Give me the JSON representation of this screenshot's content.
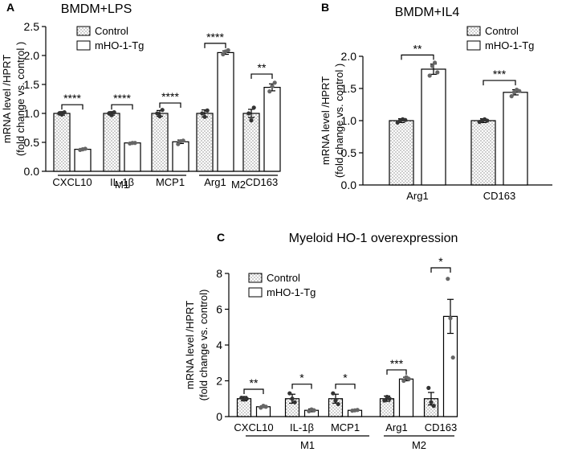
{
  "chart_data": [
    {
      "panel": "A",
      "type": "bar",
      "title": "BMDM+LPS",
      "ylabel": "mRNA level /HPRT",
      "ylabel2": "(fold change vs. control )",
      "ylim": [
        0,
        2.5
      ],
      "yticks": [
        "0.0",
        "0.5",
        "1.0",
        "1.5",
        "2.0",
        "2.5"
      ],
      "categories": [
        "CXCL10",
        "IL-1β",
        "MCP1",
        "Arg1",
        "CD163"
      ],
      "groups": [
        {
          "label": "M1",
          "span": [
            0,
            2
          ]
        },
        {
          "label": "M2",
          "span": [
            3,
            4
          ]
        }
      ],
      "series": [
        {
          "name": "Control",
          "values": [
            1.0,
            1.0,
            1.0,
            1.0,
            1.0
          ],
          "errors": [
            0.03,
            0.03,
            0.05,
            0.06,
            0.07
          ]
        },
        {
          "name": "mHO-1-Tg",
          "values": [
            0.38,
            0.49,
            0.51,
            2.05,
            1.45
          ],
          "errors": [
            0.01,
            0.01,
            0.03,
            0.03,
            0.06
          ]
        }
      ],
      "points": [
        [
          [
            1.0,
            0.98,
            1.02
          ],
          [
            0.37,
            0.38,
            0.39
          ]
        ],
        [
          [
            1.0,
            0.97,
            1.02
          ],
          [
            0.48,
            0.49,
            0.49
          ]
        ],
        [
          [
            1.0,
            0.95,
            1.06
          ],
          [
            0.47,
            0.52,
            0.53
          ]
        ],
        [
          [
            1.0,
            0.94,
            1.05
          ],
          [
            2.02,
            2.07,
            2.09
          ]
        ],
        [
          [
            1.0,
            0.88,
            1.1
          ],
          [
            1.38,
            1.47,
            1.53
          ]
        ]
      ],
      "significance": [
        "****",
        "****",
        "****",
        "****",
        "**"
      ],
      "legend": "top-left"
    },
    {
      "panel": "B",
      "type": "bar",
      "title": "BMDM+IL4",
      "ylabel": "mRNA level /HPRT",
      "ylabel2": "(fold change vs. control )",
      "ylim": [
        0,
        2.0
      ],
      "yticks": [
        "0.0",
        "0.5",
        "1.0",
        "1.5",
        "2.0"
      ],
      "categories": [
        "Arg1",
        "CD163"
      ],
      "series": [
        {
          "name": "Control",
          "values": [
            1.0,
            1.0
          ],
          "errors": [
            0.03,
            0.03
          ]
        },
        {
          "name": "mHO-1-Tg",
          "values": [
            1.8,
            1.44
          ],
          "errors": [
            0.08,
            0.04
          ]
        }
      ],
      "points": [
        [
          [
            0.97,
            1.0,
            1.02,
            1.01
          ],
          [
            1.7,
            1.85,
            1.9,
            1.75
          ]
        ],
        [
          [
            0.98,
            1.0,
            1.02,
            1.0
          ],
          [
            1.38,
            1.44,
            1.48,
            1.46
          ]
        ]
      ],
      "significance": [
        "**",
        "***"
      ],
      "legend": "top-right"
    },
    {
      "panel": "C",
      "type": "bar",
      "title": "Myeloid HO-1 overexpression",
      "ylabel": "mRNA level /HPRT",
      "ylabel2": "(fold change vs. control)",
      "ylim": [
        0,
        8
      ],
      "yticks": [
        "0",
        "2",
        "4",
        "6",
        "8"
      ],
      "categories": [
        "CXCL10",
        "IL-1β",
        "MCP1",
        "Arg1",
        "CD163"
      ],
      "groups": [
        {
          "label": "M1",
          "span": [
            0,
            2
          ]
        },
        {
          "label": "M2",
          "span": [
            3,
            4
          ]
        }
      ],
      "series": [
        {
          "name": "Control",
          "values": [
            1.0,
            1.0,
            1.0,
            1.0,
            1.0
          ],
          "errors": [
            0.12,
            0.25,
            0.25,
            0.15,
            0.35
          ]
        },
        {
          "name": "mHO-1-Tg",
          "values": [
            0.55,
            0.35,
            0.35,
            2.1,
            5.6
          ],
          "errors": [
            0.05,
            0.08,
            0.05,
            0.1,
            0.95
          ]
        }
      ],
      "points": [
        [
          [
            1.05,
            0.95,
            1.0
          ],
          [
            0.5,
            0.6,
            0.55
          ]
        ],
        [
          [
            1.3,
            1.0,
            0.8
          ],
          [
            0.3,
            0.4,
            0.35
          ]
        ],
        [
          [
            1.3,
            0.9,
            0.7
          ],
          [
            0.33,
            0.35,
            0.37
          ]
        ],
        [
          [
            0.9,
            1.1,
            1.0
          ],
          [
            2.0,
            2.2,
            2.1
          ]
        ],
        [
          [
            1.6,
            0.8,
            0.6
          ],
          [
            7.7,
            5.5,
            3.3
          ]
        ]
      ],
      "significance": [
        "**",
        "*",
        "*",
        "***",
        "*"
      ],
      "legend": "top-left"
    }
  ]
}
